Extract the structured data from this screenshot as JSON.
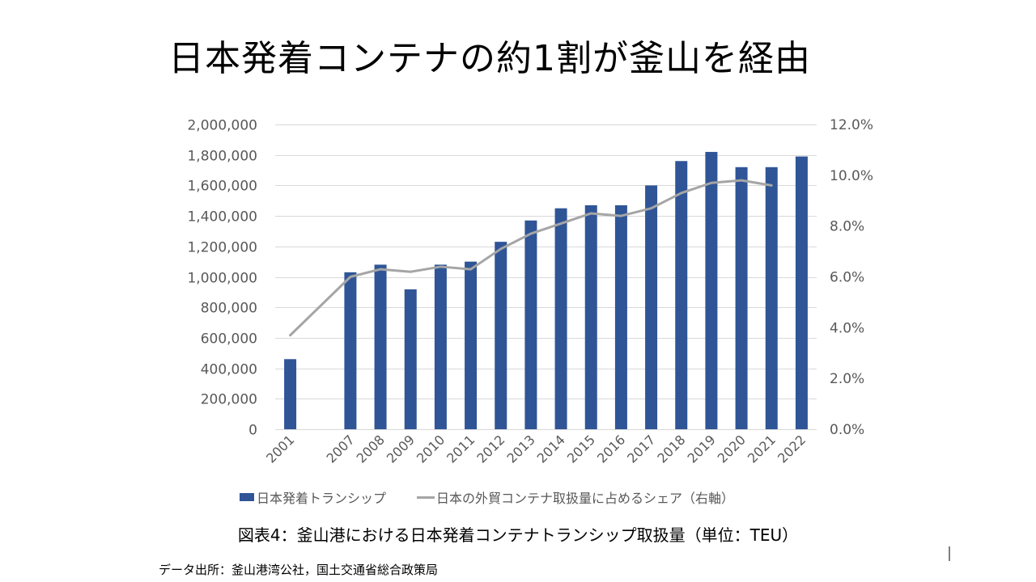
{
  "slide": {
    "title": "日本発着コンテナの約1割が釜山を経由",
    "caption": "図表4：釜山港における日本発着コンテナトランシップ取扱量（単位：TEU）",
    "source": "データ出所：釜山港湾公社，国土交通省総合政策局",
    "page_number": "1"
  },
  "colors": {
    "bar": "#2F5597",
    "line": "#A5A5A5",
    "grid": "#D9D9D9",
    "tick_text": "#595959"
  },
  "chart_data": {
    "type": "bar",
    "title": "",
    "xlabel": "",
    "ylabel": "",
    "categories": [
      "2001",
      "",
      "2007",
      "2008",
      "2009",
      "2010",
      "2011",
      "2012",
      "2013",
      "2014",
      "2015",
      "2016",
      "2017",
      "2018",
      "2019",
      "2020",
      "2021",
      "2022"
    ],
    "series": [
      {
        "name": "日本発着トランシップ",
        "type": "bar",
        "axis": "left",
        "values": [
          460000,
          null,
          1030000,
          1080000,
          918000,
          1080000,
          1100000,
          1230000,
          1370000,
          1450000,
          1470000,
          1470000,
          1600000,
          1760000,
          1820000,
          1720000,
          1720000,
          1790000
        ]
      },
      {
        "name": "日本の外貿コンテナ取扱量に占めるシェア（右軸）",
        "type": "line",
        "axis": "right",
        "values": [
          3.7,
          null,
          6.0,
          6.3,
          6.2,
          6.4,
          6.3,
          7.1,
          7.7,
          8.1,
          8.5,
          8.4,
          8.7,
          9.3,
          9.7,
          9.8,
          9.6,
          null
        ]
      }
    ],
    "y_left": {
      "ylim": [
        0,
        2000000
      ],
      "ticks": [
        0,
        200000,
        400000,
        600000,
        800000,
        1000000,
        1200000,
        1400000,
        1600000,
        1800000,
        2000000
      ],
      "tick_labels": [
        "0",
        "200,000",
        "400,000",
        "600,000",
        "800,000",
        "1,000,000",
        "1,200,000",
        "1,400,000",
        "1,600,000",
        "1,800,000",
        "2,000,000"
      ]
    },
    "y_right": {
      "ylim": [
        0,
        12
      ],
      "ticks": [
        0,
        2,
        4,
        6,
        8,
        10,
        12
      ],
      "tick_labels": [
        "0.0%",
        "2.0%",
        "4.0%",
        "6.0%",
        "8.0%",
        "10.0%",
        "12.0%"
      ]
    },
    "grid": true,
    "legend": {
      "position": "bottom",
      "entries": [
        "日本発着トランシップ",
        "日本の外貿コンテナ取扱量に占めるシェア（右軸）"
      ]
    }
  }
}
